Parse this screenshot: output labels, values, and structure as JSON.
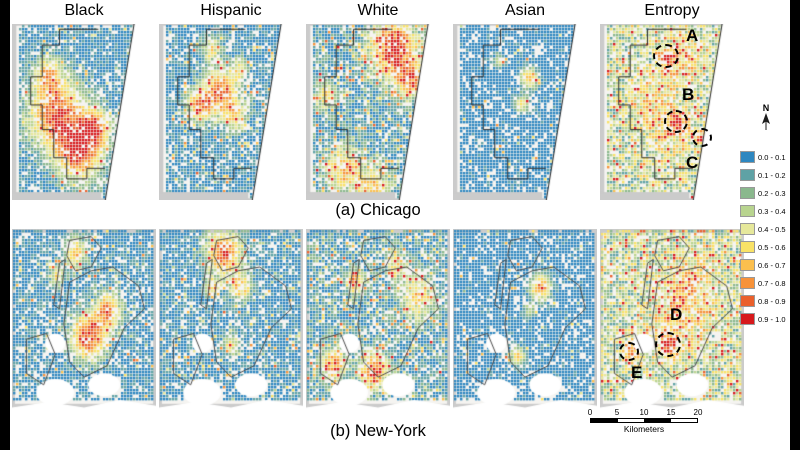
{
  "figure": {
    "caption_a": "(a) Chicago",
    "caption_b": "(b) New-York"
  },
  "columns": [
    "Black",
    "Hispanic",
    "White",
    "Asian",
    "Entropy"
  ],
  "legend": {
    "entries": [
      {
        "label": "0.0 - 0.1",
        "color": "#2e87c0"
      },
      {
        "label": "0.1 - 0.2",
        "color": "#5fa2a5"
      },
      {
        "label": "0.2 - 0.3",
        "color": "#8ab88d"
      },
      {
        "label": "0.3 - 0.4",
        "color": "#b8d48f"
      },
      {
        "label": "0.4 - 0.5",
        "color": "#e6e89b"
      },
      {
        "label": "0.5 - 0.6",
        "color": "#f9e266"
      },
      {
        "label": "0.6 - 0.7",
        "color": "#fbbf4e"
      },
      {
        "label": "0.7 - 0.8",
        "color": "#f79239"
      },
      {
        "label": "0.8 - 0.9",
        "color": "#ea602c"
      },
      {
        "label": "0.9 - 1.0",
        "color": "#d7191c"
      }
    ]
  },
  "north_arrow": {
    "label": "N"
  },
  "scalebar": {
    "ticks": [
      "0",
      "5",
      "10",
      "15",
      "20"
    ],
    "unit": "Kilometers"
  },
  "annotations": {
    "chicago": [
      {
        "label": "A"
      },
      {
        "label": "B"
      },
      {
        "label": "C"
      }
    ],
    "new_york": [
      {
        "label": "D"
      },
      {
        "label": "E"
      }
    ]
  }
}
